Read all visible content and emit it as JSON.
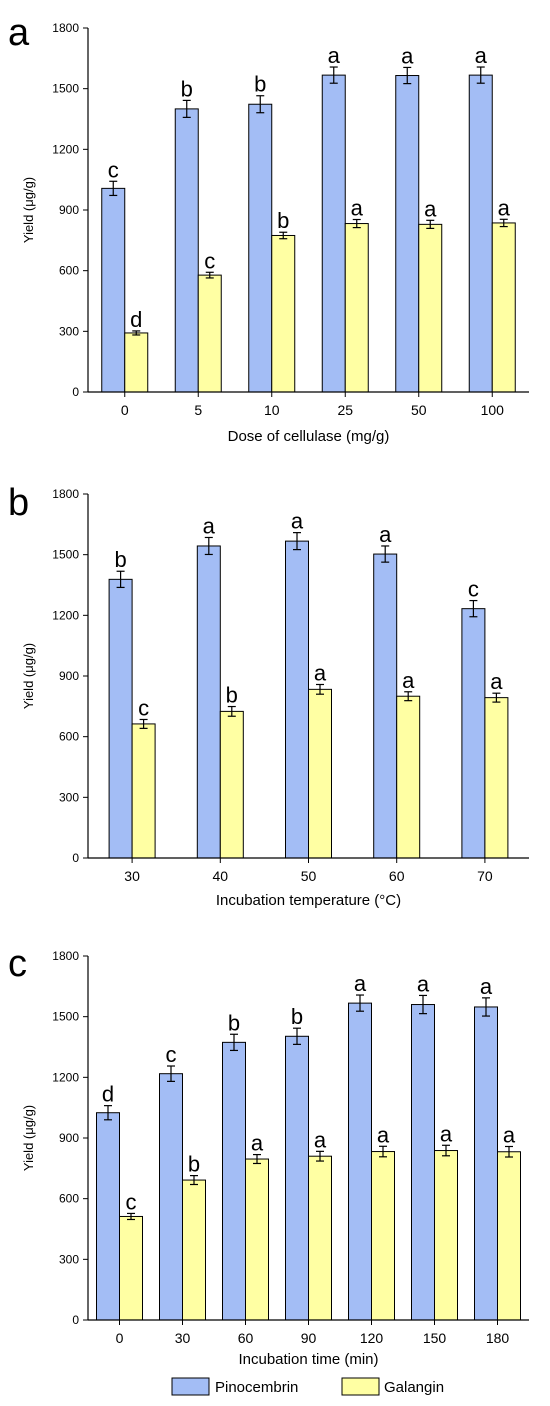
{
  "figure": {
    "legend": {
      "placement": "bottom-center"
    },
    "colors": {
      "pinocembrin": "#a3bdf5",
      "galangin": "#ffffa3",
      "outline": "#000000"
    }
  },
  "chart_data": [
    {
      "type": "bar",
      "panel_label": "a",
      "xlabel": "Dose of cellulase (mg/g)",
      "ylabel": "Yield (μg/g)",
      "ylim": [
        0,
        1800
      ],
      "yticks": [
        0,
        300,
        600,
        900,
        1200,
        1500,
        1800
      ],
      "grid": false,
      "categories": [
        "0",
        "5",
        "10",
        "25",
        "50",
        "100"
      ],
      "series": [
        {
          "name": "Pinocembrin",
          "color": "#a3bdf5",
          "values": [
            1007,
            1400,
            1423,
            1567,
            1565,
            1567
          ],
          "errors": [
            35,
            42,
            42,
            40,
            40,
            40
          ],
          "letters": [
            "c",
            "b",
            "b",
            "a",
            "a",
            "a"
          ]
        },
        {
          "name": "Galangin",
          "color": "#ffffa3",
          "values": [
            292,
            578,
            774,
            833,
            829,
            836
          ],
          "errors": [
            10,
            14,
            16,
            20,
            20,
            18
          ],
          "letters": [
            "d",
            "c",
            "b",
            "a",
            "a",
            "a"
          ]
        }
      ]
    },
    {
      "type": "bar",
      "panel_label": "b",
      "xlabel": "Incubation temperature (°C)",
      "ylabel": "Yield (μg/g)",
      "ylim": [
        0,
        1800
      ],
      "yticks": [
        0,
        300,
        600,
        900,
        1200,
        1500,
        1800
      ],
      "grid": false,
      "categories": [
        "30",
        "40",
        "50",
        "60",
        "70"
      ],
      "series": [
        {
          "name": "Pinocembrin",
          "color": "#a3bdf5",
          "values": [
            1378,
            1543,
            1567,
            1503,
            1233
          ],
          "errors": [
            40,
            42,
            42,
            40,
            40
          ],
          "letters": [
            "b",
            "a",
            "a",
            "a",
            "c"
          ]
        },
        {
          "name": "Galangin",
          "color": "#ffffa3",
          "values": [
            663,
            725,
            834,
            800,
            793
          ],
          "errors": [
            22,
            24,
            24,
            22,
            22
          ],
          "letters": [
            "c",
            "b",
            "a",
            "a",
            "a"
          ]
        }
      ]
    },
    {
      "type": "bar",
      "panel_label": "c",
      "xlabel": "Incubation time (min)",
      "ylabel": "Yield (μg/g)",
      "ylim": [
        0,
        1800
      ],
      "yticks": [
        0,
        300,
        600,
        900,
        1200,
        1500,
        1800
      ],
      "grid": false,
      "categories": [
        "0",
        "30",
        "60",
        "90",
        "120",
        "150",
        "180"
      ],
      "series": [
        {
          "name": "Pinocembrin",
          "color": "#a3bdf5",
          "values": [
            1025,
            1218,
            1373,
            1403,
            1567,
            1560,
            1548
          ],
          "errors": [
            35,
            38,
            40,
            40,
            40,
            45,
            45
          ],
          "letters": [
            "d",
            "c",
            "b",
            "b",
            "a",
            "a",
            "a"
          ]
        },
        {
          "name": "Galangin",
          "color": "#ffffa3",
          "values": [
            512,
            692,
            796,
            810,
            833,
            838,
            832
          ],
          "errors": [
            15,
            22,
            22,
            24,
            26,
            26,
            26
          ],
          "letters": [
            "c",
            "b",
            "a",
            "a",
            "a",
            "a",
            "a"
          ]
        }
      ]
    }
  ]
}
